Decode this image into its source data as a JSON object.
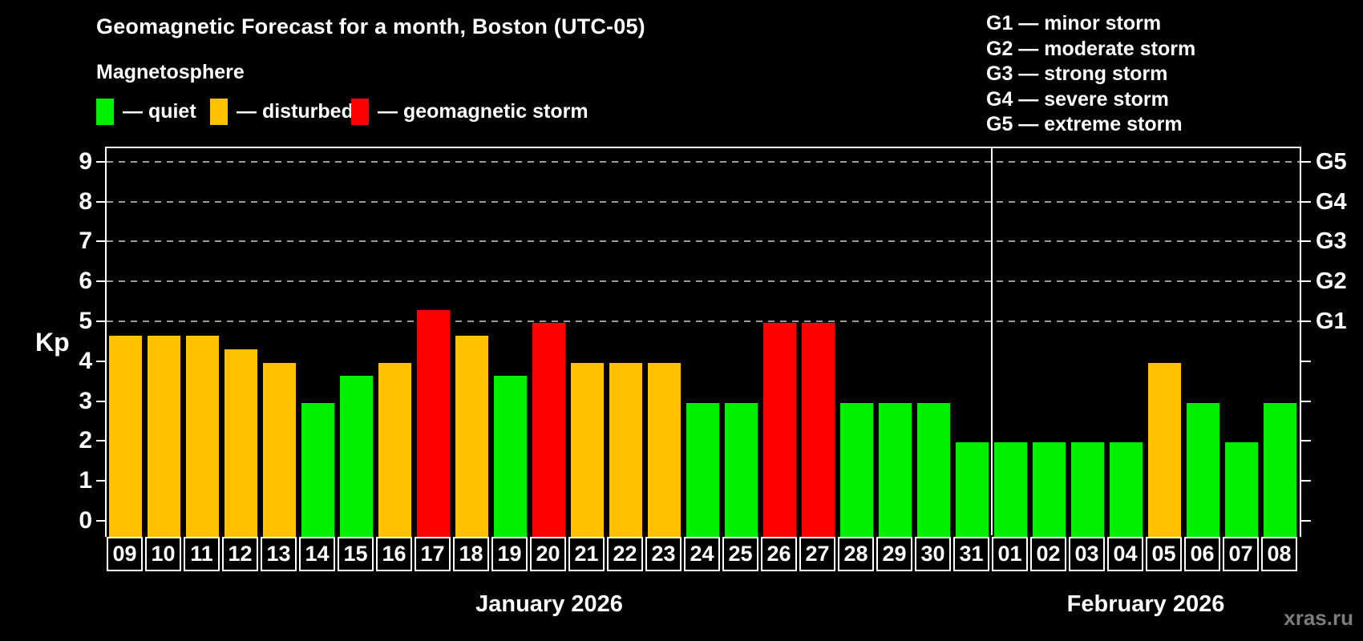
{
  "title": "Geomagnetic Forecast for a month, Boston (UTC-05)",
  "subtitle": "Magnetosphere",
  "watermark": "xras.ru",
  "colors": {
    "quiet": "#00f000",
    "disturbed": "#ffc100",
    "storm": "#ff0000",
    "grid": "#9c9c9c",
    "axis": "#ffffff"
  },
  "legend": [
    {
      "state": "quiet",
      "label": "— quiet"
    },
    {
      "state": "disturbed",
      "label": "— disturbed"
    },
    {
      "state": "storm",
      "label": "— geomagnetic storm"
    }
  ],
  "g_legend": [
    "G1 — minor storm",
    "G2 — moderate storm",
    "G3 — strong storm",
    "G4 — severe storm",
    "G5 — extreme storm"
  ],
  "chart_data": {
    "type": "bar",
    "ylabel_left": "Kp",
    "yticks_left": [
      0,
      1,
      2,
      3,
      4,
      5,
      6,
      7,
      8,
      9
    ],
    "ylim": [
      0,
      9.35
    ],
    "grid_kp": [
      5,
      6,
      7,
      8,
      9
    ],
    "yticks_right": [
      {
        "kp": 5,
        "label": "G1"
      },
      {
        "kp": 6,
        "label": "G2"
      },
      {
        "kp": 7,
        "label": "G3"
      },
      {
        "kp": 8,
        "label": "G4"
      },
      {
        "kp": 9,
        "label": "G5"
      }
    ],
    "months": [
      {
        "label": "January 2026",
        "days": 23
      },
      {
        "label": "February 2026",
        "days": 8
      }
    ],
    "days": [
      {
        "date": "09",
        "kp": 4.67,
        "state": "disturbed"
      },
      {
        "date": "10",
        "kp": 4.67,
        "state": "disturbed"
      },
      {
        "date": "11",
        "kp": 4.67,
        "state": "disturbed"
      },
      {
        "date": "12",
        "kp": 4.33,
        "state": "disturbed"
      },
      {
        "date": "13",
        "kp": 4.0,
        "state": "disturbed"
      },
      {
        "date": "14",
        "kp": 3.0,
        "state": "quiet"
      },
      {
        "date": "15",
        "kp": 3.67,
        "state": "quiet"
      },
      {
        "date": "16",
        "kp": 4.0,
        "state": "disturbed"
      },
      {
        "date": "17",
        "kp": 5.33,
        "state": "storm"
      },
      {
        "date": "18",
        "kp": 4.67,
        "state": "disturbed"
      },
      {
        "date": "19",
        "kp": 3.67,
        "state": "quiet"
      },
      {
        "date": "20",
        "kp": 5.0,
        "state": "storm"
      },
      {
        "date": "21",
        "kp": 4.0,
        "state": "disturbed"
      },
      {
        "date": "22",
        "kp": 4.0,
        "state": "disturbed"
      },
      {
        "date": "23",
        "kp": 4.0,
        "state": "disturbed"
      },
      {
        "date": "24",
        "kp": 3.0,
        "state": "quiet"
      },
      {
        "date": "25",
        "kp": 3.0,
        "state": "quiet"
      },
      {
        "date": "26",
        "kp": 5.0,
        "state": "storm"
      },
      {
        "date": "27",
        "kp": 5.0,
        "state": "storm"
      },
      {
        "date": "28",
        "kp": 3.0,
        "state": "quiet"
      },
      {
        "date": "29",
        "kp": 3.0,
        "state": "quiet"
      },
      {
        "date": "30",
        "kp": 3.0,
        "state": "quiet"
      },
      {
        "date": "31",
        "kp": 2.0,
        "state": "quiet"
      },
      {
        "date": "01",
        "kp": 2.0,
        "state": "quiet"
      },
      {
        "date": "02",
        "kp": 2.0,
        "state": "quiet"
      },
      {
        "date": "03",
        "kp": 2.0,
        "state": "quiet"
      },
      {
        "date": "04",
        "kp": 2.0,
        "state": "quiet"
      },
      {
        "date": "05",
        "kp": 4.0,
        "state": "disturbed"
      },
      {
        "date": "06",
        "kp": 3.0,
        "state": "quiet"
      },
      {
        "date": "07",
        "kp": 2.0,
        "state": "quiet"
      },
      {
        "date": "08",
        "kp": 3.0,
        "state": "quiet"
      }
    ]
  }
}
